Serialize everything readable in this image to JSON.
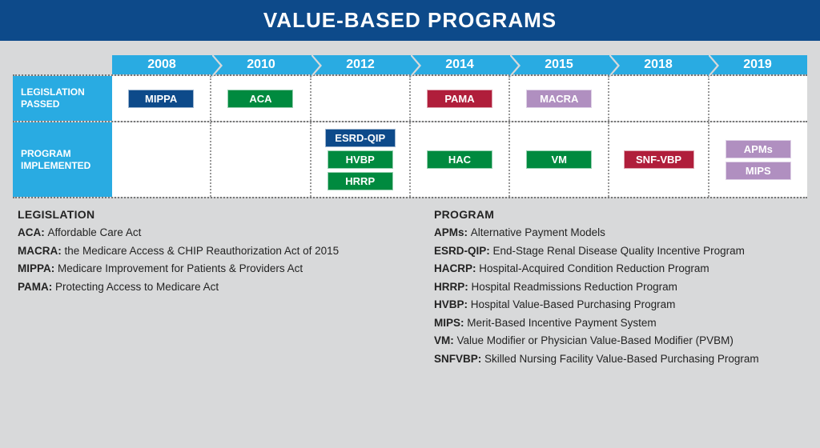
{
  "title": "VALUE-BASED PROGRAMS",
  "colors": {
    "title_bg": "#0d4a8a",
    "accent": "#29abe2",
    "page_bg": "#d8d9da",
    "cell_bg": "#ffffff",
    "tag_blue": "#0d4a8a",
    "tag_green": "#008a3f",
    "tag_red": "#b01e3b",
    "tag_purple": "#b08fc0"
  },
  "years": [
    "2008",
    "2010",
    "2012",
    "2014",
    "2015",
    "2018",
    "2019"
  ],
  "rows": [
    {
      "label": "LEGISLATION PASSED",
      "cells": [
        [
          {
            "text": "MIPPA",
            "color": "tag_blue"
          }
        ],
        [
          {
            "text": "ACA",
            "color": "tag_green"
          }
        ],
        [],
        [
          {
            "text": "PAMA",
            "color": "tag_red"
          }
        ],
        [
          {
            "text": "MACRA",
            "color": "tag_purple"
          }
        ],
        [],
        []
      ]
    },
    {
      "label": "PROGRAM IMPLEMENTED",
      "cells": [
        [],
        [],
        [
          {
            "text": "ESRD-QIP",
            "color": "tag_blue"
          },
          {
            "text": "HVBP",
            "color": "tag_green"
          },
          {
            "text": "HRRP",
            "color": "tag_green"
          }
        ],
        [
          {
            "text": "HAC",
            "color": "tag_green"
          }
        ],
        [
          {
            "text": "VM",
            "color": "tag_green"
          }
        ],
        [
          {
            "text": "SNF-VBP",
            "color": "tag_red"
          }
        ],
        [
          {
            "text": "APMs",
            "color": "tag_purple"
          },
          {
            "text": "MIPS",
            "color": "tag_purple"
          }
        ]
      ]
    }
  ],
  "legend": {
    "left": {
      "heading": "LEGISLATION",
      "items": [
        {
          "abbr": "ACA:",
          "def": "Affordable Care Act"
        },
        {
          "abbr": "MACRA:",
          "def": "the Medicare Access & CHIP Reauthorization Act of 2015"
        },
        {
          "abbr": "MIPPA:",
          "def": "Medicare Improvement for Patients & Providers Act"
        },
        {
          "abbr": "PAMA:",
          "def": "Protecting Access to Medicare Act"
        }
      ]
    },
    "right": {
      "heading": "PROGRAM",
      "items": [
        {
          "abbr": "APMs:",
          "def": "Alternative Payment Models"
        },
        {
          "abbr": "ESRD-QIP:",
          "def": "End-Stage Renal Disease Quality Incentive Program"
        },
        {
          "abbr": "HACRP:",
          "def": "Hospital-Acquired Condition Reduction Program"
        },
        {
          "abbr": "HRRP:",
          "def": "Hospital Readmissions Reduction Program"
        },
        {
          "abbr": "HVBP:",
          "def": "Hospital Value-Based Purchasing Program"
        },
        {
          "abbr": "MIPS:",
          "def": "Merit-Based Incentive Payment System"
        },
        {
          "abbr": "VM:",
          "def": "Value Modifier or Physician Value-Based Modifier (PVBM)"
        },
        {
          "abbr": "SNFVBP:",
          "def": "Skilled Nursing Facility Value-Based Purchasing Program"
        }
      ]
    }
  }
}
